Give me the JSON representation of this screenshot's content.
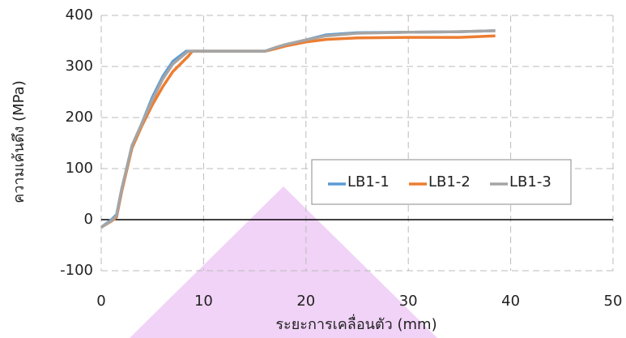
{
  "chart_data": {
    "type": "line",
    "x_label": "ระยะการเคลื่อนตัว (mm)",
    "y_label": "ความเค้นดึง (MPa)",
    "xlim": [
      0,
      50
    ],
    "xticks": [
      0,
      10,
      20,
      30,
      40,
      50
    ],
    "ylim": [
      -100,
      400
    ],
    "yticks": [
      -100,
      0,
      100,
      200,
      300,
      400
    ],
    "grid": true,
    "series": [
      {
        "name": "LB1-1",
        "color": "#5b9bd5",
        "x": [
          0,
          1,
          1.5,
          2,
          3,
          4,
          5,
          6,
          7,
          8.3,
          10,
          16,
          17,
          18,
          20,
          22,
          25,
          30,
          35,
          38.5
        ],
        "values": [
          -15,
          0,
          10,
          60,
          140,
          190,
          240,
          280,
          310,
          330,
          330,
          330,
          335,
          342,
          352,
          362,
          366,
          367,
          368,
          370
        ]
      },
      {
        "name": "LB1-2",
        "color": "#ed7d31",
        "x": [
          0,
          1,
          1.5,
          2,
          3,
          4,
          5,
          6,
          7,
          8.5,
          8.9,
          10,
          16,
          16.5,
          18,
          20,
          22,
          25,
          30,
          35,
          38.5
        ],
        "values": [
          -15,
          -3,
          5,
          55,
          140,
          185,
          225,
          260,
          290,
          320,
          330,
          330,
          330,
          332,
          340,
          348,
          353,
          356,
          357,
          357,
          360
        ]
      },
      {
        "name": "LB1-3",
        "color": "#a5a5a5",
        "x": [
          0,
          1,
          1.5,
          2,
          3,
          4,
          5,
          6,
          7,
          8.5,
          10,
          16,
          17,
          18,
          20,
          22,
          25,
          30,
          35,
          38.5
        ],
        "values": [
          -15,
          -2,
          8,
          60,
          145,
          190,
          235,
          275,
          305,
          330,
          330,
          330,
          337,
          343,
          352,
          360,
          365,
          367,
          368,
          370
        ]
      }
    ]
  }
}
